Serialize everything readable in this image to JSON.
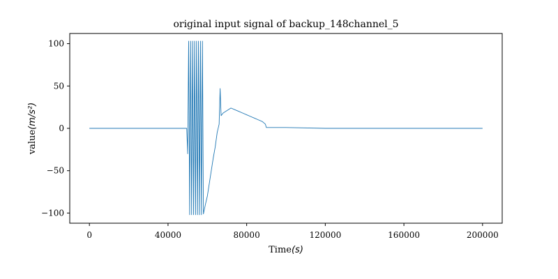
{
  "chart_data": {
    "type": "line",
    "title": "original input signal of backup_148channel_5",
    "xlabel_text": "Time",
    "xlabel_unit": "(s)",
    "ylabel_text": "value",
    "ylabel_unit": "(m/s²)",
    "xlim": [
      -10000,
      210000
    ],
    "ylim": [
      -112,
      112
    ],
    "xticks": [
      0,
      40000,
      80000,
      120000,
      160000,
      200000
    ],
    "xtick_labels": [
      "0",
      "40000",
      "80000",
      "120000",
      "160000",
      "200000"
    ],
    "yticks": [
      100,
      50,
      0,
      -50,
      -100
    ],
    "ytick_labels": [
      "100",
      "50",
      "0",
      "−50",
      "−100"
    ],
    "grid": false,
    "series_color": "#1f77b4",
    "series": [
      {
        "x": [
          0,
          49500,
          50000,
          50500,
          51000,
          51500,
          52000,
          52500,
          53000,
          53500,
          54000,
          54500,
          55000,
          55500,
          56000,
          56500,
          57000,
          57500,
          58000,
          59000,
          60000,
          61000,
          62000,
          63000,
          64000,
          65000,
          66000,
          66500,
          67000,
          68000,
          70000,
          72000,
          74000,
          76000,
          78000,
          80000,
          82000,
          84000,
          86000,
          88000,
          89500,
          90000,
          100000,
          120000,
          140000,
          160000,
          180000,
          200000
        ],
        "y": [
          0,
          0,
          -30,
          103,
          -102,
          103,
          -102,
          103,
          -102,
          103,
          -102,
          103,
          -102,
          103,
          -102,
          103,
          -102,
          103,
          -101,
          -90,
          -80,
          -65,
          -50,
          -35,
          -22,
          -5,
          5,
          47,
          15,
          18,
          21,
          24,
          22,
          20,
          18,
          16,
          14,
          12,
          10,
          8,
          5,
          1,
          1,
          0,
          0,
          0,
          0,
          0
        ]
      }
    ]
  }
}
